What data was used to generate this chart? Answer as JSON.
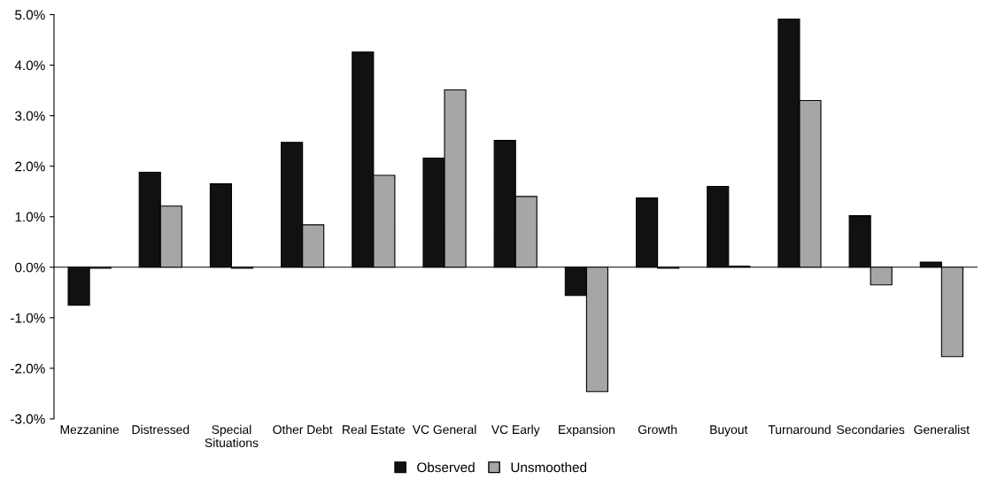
{
  "chart_data": {
    "type": "bar",
    "categories": [
      "Mezzanine",
      "Distressed",
      "Special\nSituations",
      "Other Debt",
      "Real Estate",
      "VC General",
      "VC Early",
      "Expansion",
      "Growth",
      "Buyout",
      "Turnaround",
      "Secondaries",
      "Generalist"
    ],
    "series": [
      {
        "name": "Observed",
        "color": "#111111",
        "values": [
          -0.75,
          1.88,
          1.65,
          2.47,
          4.26,
          2.16,
          2.51,
          -0.56,
          1.37,
          1.6,
          4.91,
          1.02,
          0.1
        ]
      },
      {
        "name": "Unsmoothed",
        "color": "#a6a6a6",
        "values": [
          -0.02,
          1.21,
          -0.02,
          0.84,
          1.82,
          3.51,
          1.4,
          -2.46,
          -0.02,
          0.02,
          3.3,
          -0.35,
          -1.77
        ]
      }
    ],
    "ylim": [
      -3,
      5
    ],
    "yticks": [
      {
        "value": -3,
        "label": "-3.0%"
      },
      {
        "value": -2,
        "label": "-2.0%"
      },
      {
        "value": -1,
        "label": "-1.0%"
      },
      {
        "value": 0,
        "label": "0.0%"
      },
      {
        "value": 1,
        "label": "1.0%"
      },
      {
        "value": 2,
        "label": "2.0%"
      },
      {
        "value": 3,
        "label": "3.0%"
      },
      {
        "value": 4,
        "label": "4.0%"
      },
      {
        "value": 5,
        "label": "5.0%"
      }
    ],
    "legend": "bottom"
  }
}
